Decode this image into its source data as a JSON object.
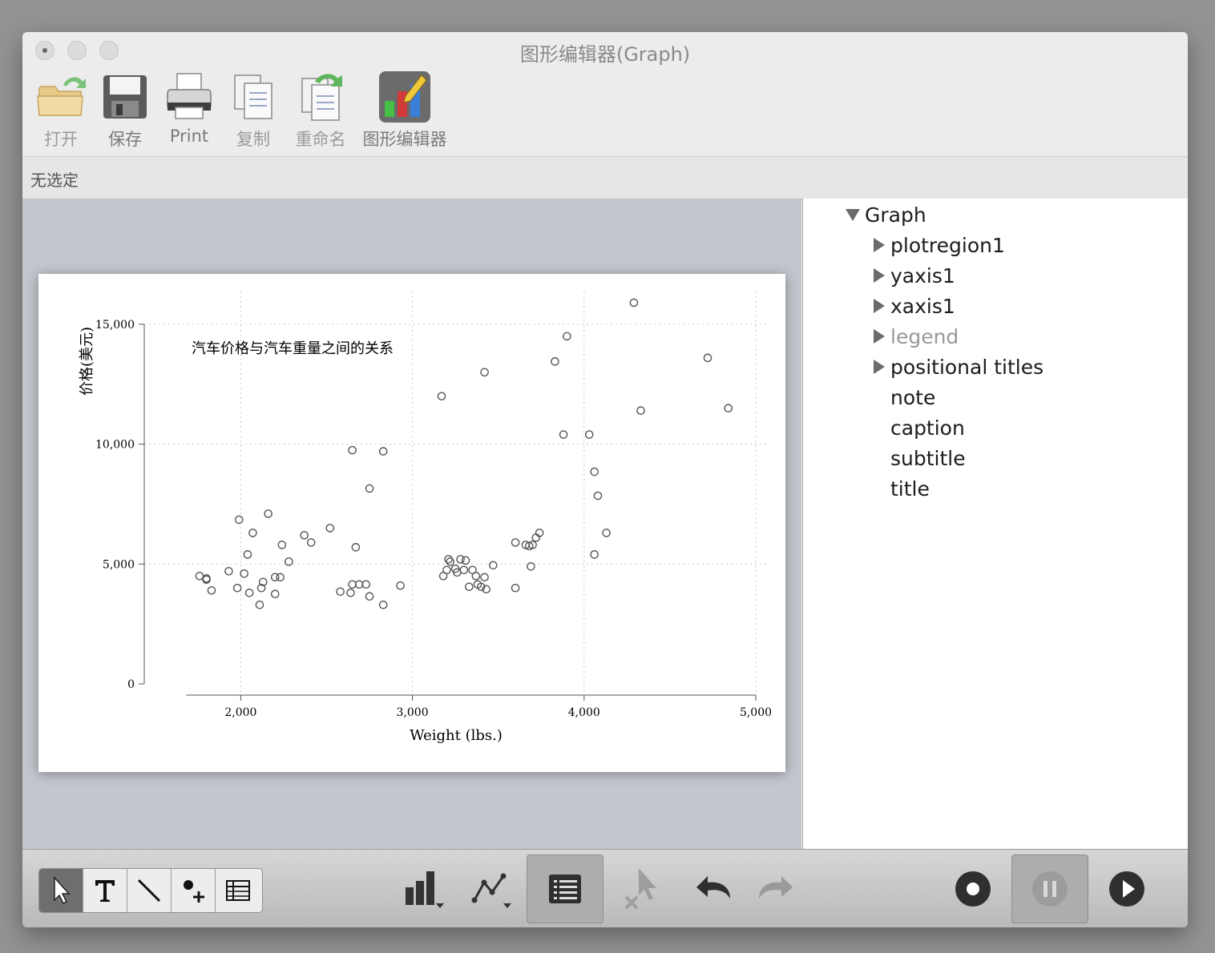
{
  "window": {
    "title": "图形编辑器(Graph)"
  },
  "toolbar": {
    "open": "打开",
    "save": "保存",
    "print": "Print",
    "copy": "复制",
    "rename": "重命名",
    "graph_editor": "图形编辑器"
  },
  "selection_status": "无选定",
  "tree": {
    "root": "Graph",
    "items": [
      {
        "label": "plotregion1",
        "expandable": true,
        "dim": false
      },
      {
        "label": "yaxis1",
        "expandable": true,
        "dim": false
      },
      {
        "label": "xaxis1",
        "expandable": true,
        "dim": false
      },
      {
        "label": "legend",
        "expandable": true,
        "dim": true
      },
      {
        "label": "positional titles",
        "expandable": true,
        "dim": false
      },
      {
        "label": "note",
        "expandable": false,
        "dim": false
      },
      {
        "label": "caption",
        "expandable": false,
        "dim": false
      },
      {
        "label": "subtitle",
        "expandable": false,
        "dim": false
      },
      {
        "label": "title",
        "expandable": false,
        "dim": false
      }
    ]
  },
  "chart_data": {
    "type": "scatter",
    "title": "汽车价格与汽车重量之间的关系",
    "xlabel": "Weight (lbs.)",
    "ylabel": "价格(美元)",
    "xlim": [
      1760,
      5000
    ],
    "ylim": [
      0,
      15900
    ],
    "xticks": [
      2000,
      3000,
      4000,
      5000
    ],
    "xtick_labels": [
      "2,000",
      "3,000",
      "4,000",
      "5,000"
    ],
    "yticks": [
      0,
      5000,
      10000,
      15000
    ],
    "ytick_labels": [
      "0",
      "5,000",
      "10,000",
      "15,000"
    ],
    "grid": true,
    "marker": "hollow-circle",
    "points": [
      [
        1760,
        4500
      ],
      [
        1800,
        4400
      ],
      [
        1800,
        4350
      ],
      [
        1830,
        3900
      ],
      [
        1930,
        4700
      ],
      [
        1980,
        4000
      ],
      [
        1990,
        6850
      ],
      [
        2020,
        4600
      ],
      [
        2040,
        5400
      ],
      [
        2050,
        3800
      ],
      [
        2070,
        6300
      ],
      [
        2110,
        3300
      ],
      [
        2120,
        4000
      ],
      [
        2130,
        4250
      ],
      [
        2160,
        7100
      ],
      [
        2200,
        4450
      ],
      [
        2200,
        3750
      ],
      [
        2230,
        4450
      ],
      [
        2240,
        5800
      ],
      [
        2280,
        5100
      ],
      [
        2370,
        6200
      ],
      [
        2410,
        5900
      ],
      [
        2520,
        6500
      ],
      [
        2580,
        3850
      ],
      [
        2640,
        3800
      ],
      [
        2650,
        4150
      ],
      [
        2650,
        9750
      ],
      [
        2670,
        5700
      ],
      [
        2690,
        4150
      ],
      [
        2730,
        4150
      ],
      [
        2750,
        8150
      ],
      [
        2750,
        3650
      ],
      [
        2830,
        9700
      ],
      [
        2830,
        3300
      ],
      [
        2930,
        4100
      ],
      [
        3170,
        12000
      ],
      [
        3180,
        4500
      ],
      [
        3200,
        4750
      ],
      [
        3210,
        5200
      ],
      [
        3220,
        5100
      ],
      [
        3250,
        4800
      ],
      [
        3260,
        4650
      ],
      [
        3280,
        5200
      ],
      [
        3300,
        4750
      ],
      [
        3310,
        5150
      ],
      [
        3330,
        4050
      ],
      [
        3350,
        4750
      ],
      [
        3370,
        4500
      ],
      [
        3380,
        4150
      ],
      [
        3400,
        4050
      ],
      [
        3420,
        4450
      ],
      [
        3420,
        13000
      ],
      [
        3430,
        3950
      ],
      [
        3470,
        4950
      ],
      [
        3600,
        4000
      ],
      [
        3600,
        5900
      ],
      [
        3660,
        5800
      ],
      [
        3680,
        5750
      ],
      [
        3690,
        4900
      ],
      [
        3700,
        5800
      ],
      [
        3720,
        6100
      ],
      [
        3740,
        6300
      ],
      [
        3830,
        13450
      ],
      [
        3880,
        10400
      ],
      [
        3900,
        14500
      ],
      [
        4030,
        10400
      ],
      [
        4060,
        8850
      ],
      [
        4060,
        5400
      ],
      [
        4080,
        7850
      ],
      [
        4130,
        6300
      ],
      [
        4290,
        15900
      ],
      [
        4330,
        11400
      ],
      [
        4720,
        13600
      ],
      [
        4840,
        11500
      ]
    ]
  }
}
